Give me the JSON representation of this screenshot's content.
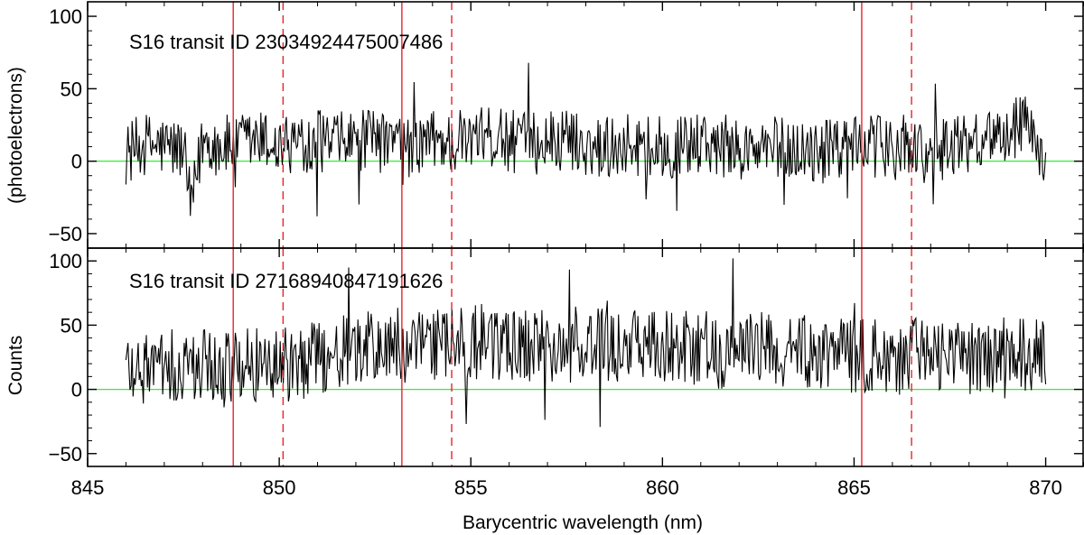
{
  "figure": {
    "xlabel": "Barycentric wavelength (nm)",
    "ylabel_top": "(photoelectrons)",
    "ylabel_bottom": "Counts"
  },
  "colors": {
    "spectrum": "#000000",
    "zero_line": "#33ee33",
    "ca_lines": "#e8232a",
    "frame": "#000000"
  },
  "chart_data": [
    {
      "type": "line",
      "title": "S16 transit ID 2303492447500748​6",
      "annotation": "S16 transit ID 23034924475007486",
      "xlim": [
        845,
        871
      ],
      "ylim": [
        -60,
        110
      ],
      "xticks": [
        845,
        850,
        855,
        860,
        865,
        870
      ],
      "yticks": [
        -50,
        0,
        50,
        100
      ],
      "xtick_labels": [],
      "ytick_labels": [
        "−50",
        "0",
        "50",
        "100"
      ],
      "zero_line": 0,
      "solid_vlines": [
        848.8,
        853.2,
        865.2
      ],
      "dashed_vlines": [
        850.1,
        854.5,
        866.5
      ],
      "series": [
        {
          "x": [
            846,
            846.5,
            847,
            847.5,
            847.7,
            848,
            848.5,
            849,
            849.5,
            850,
            850.5,
            851,
            851.5,
            852,
            852.5,
            853,
            853.5,
            854,
            854.5,
            855,
            855.5,
            856,
            856.5,
            857,
            857.5,
            858,
            858.5,
            859,
            859.5,
            860,
            860.5,
            861,
            861.5,
            862,
            862.5,
            863,
            863.5,
            864,
            864.5,
            865,
            865.5,
            866,
            866.5,
            867,
            867.5,
            868,
            868.5,
            869,
            869.5,
            870
          ],
          "y": [
            5,
            12,
            10,
            8,
            -35,
            15,
            10,
            12,
            14,
            10,
            13,
            15,
            12,
            14,
            13,
            12,
            10,
            15,
            12,
            14,
            16,
            14,
            12,
            13,
            14,
            12,
            10,
            12,
            11,
            9,
            10,
            12,
            11,
            8,
            7,
            10,
            8,
            6,
            7,
            12,
            10,
            8,
            12,
            5,
            10,
            14,
            18,
            22,
            25,
            0
          ]
        }
      ]
    },
    {
      "type": "line",
      "annotation": "S16 transit ID 27168940847191626",
      "xlim": [
        845,
        871
      ],
      "ylim": [
        -60,
        110
      ],
      "xticks": [
        845,
        850,
        855,
        860,
        865,
        870
      ],
      "yticks": [
        -50,
        0,
        50,
        100
      ],
      "xtick_labels": [
        "845",
        "850",
        "855",
        "860",
        "865",
        "870"
      ],
      "ytick_labels": [
        "−50",
        "0",
        "50",
        "100"
      ],
      "zero_line": 0,
      "solid_vlines": [
        848.8,
        853.2,
        865.2
      ],
      "dashed_vlines": [
        850.1,
        854.5,
        866.5
      ],
      "series": [
        {
          "x": [
            846,
            846.5,
            847,
            847.5,
            848,
            848.5,
            849,
            849.5,
            850,
            850.5,
            851,
            851.5,
            852,
            852.5,
            853,
            853.5,
            854,
            854.5,
            855,
            855.5,
            856,
            856.5,
            857,
            857.5,
            858,
            858.5,
            859,
            859.5,
            860,
            860.5,
            861,
            861.5,
            862,
            862.5,
            863,
            863.5,
            864,
            864.5,
            865,
            865.5,
            866,
            866.5,
            867,
            867.5,
            868,
            868.5,
            869,
            869.5,
            870
          ],
          "y": [
            20,
            15,
            18,
            16,
            20,
            15,
            18,
            20,
            22,
            18,
            25,
            28,
            30,
            32,
            35,
            30,
            32,
            34,
            36,
            38,
            35,
            34,
            33,
            35,
            36,
            34,
            33,
            35,
            34,
            32,
            33,
            30,
            32,
            31,
            30,
            32,
            30,
            28,
            25,
            26,
            24,
            28,
            26,
            25,
            24,
            27,
            26,
            28,
            25
          ]
        }
      ]
    }
  ]
}
